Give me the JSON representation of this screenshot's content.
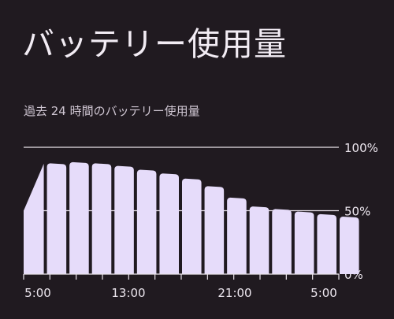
{
  "header": {
    "title": "バッテリー使用量"
  },
  "battery_chart": {
    "subtitle": "過去 24 時間のバッテリー使用量"
  },
  "colors": {
    "background": "#201a20",
    "bar_fill": "#e6dcfa",
    "gridline": "#e9e3ea",
    "text": "#ece6ee"
  },
  "chart_data": {
    "type": "area",
    "title": "",
    "xlabel": "",
    "ylabel": "",
    "ylim": [
      0,
      100
    ],
    "y_ticks": [
      "100%",
      "50%",
      "0%"
    ],
    "x_ticks": [
      "5:00",
      "13:00",
      "21:00",
      "5:00"
    ],
    "grid": true,
    "series": [
      {
        "values": [
          50,
          87,
          88,
          87,
          85,
          82,
          79,
          75,
          69,
          60,
          53,
          51,
          49,
          47,
          45
        ]
      }
    ]
  }
}
